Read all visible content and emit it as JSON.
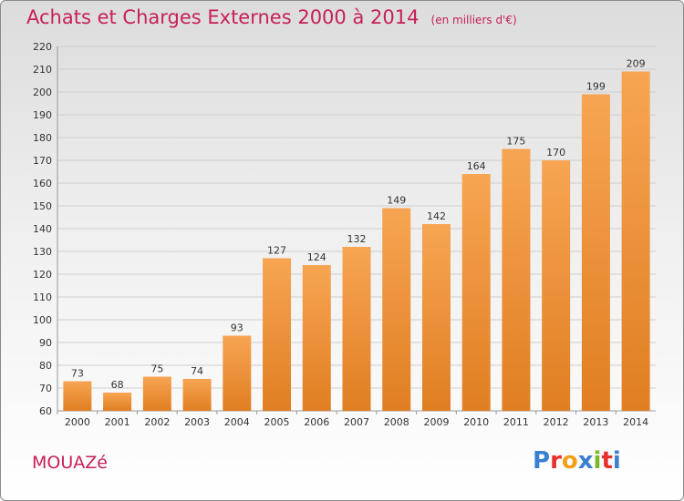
{
  "header": {
    "title": "Achats et Charges Externes 2000 à 2014",
    "unit": "(en milliers d'€)"
  },
  "footer": {
    "commune": "MOUAZé",
    "logo_letters": [
      "P",
      "r",
      "o",
      "x",
      "i",
      "t",
      "i"
    ],
    "logo_colors": [
      "#3a7fd0",
      "#e8302b",
      "#f2a018",
      "#3a7fd0",
      "#7ab828",
      "#e8302b",
      "#3a7fd0"
    ]
  },
  "colors": {
    "bar_top": "#f7a552",
    "bar_bottom": "#e07e22",
    "title": "#c7205a",
    "grid": "#cfcfcf"
  },
  "chart_data": {
    "type": "bar",
    "title": "Achats et Charges Externes 2000 à 2014",
    "xlabel": "",
    "ylabel": "",
    "categories": [
      "2000",
      "2001",
      "2002",
      "2003",
      "2004",
      "2005",
      "2006",
      "2007",
      "2008",
      "2009",
      "2010",
      "2011",
      "2012",
      "2013",
      "2014"
    ],
    "values": [
      73,
      68,
      75,
      74,
      93,
      127,
      124,
      132,
      149,
      142,
      164,
      175,
      170,
      199,
      209
    ],
    "ylim": [
      60,
      220
    ],
    "yticks": [
      60,
      70,
      80,
      90,
      100,
      110,
      120,
      130,
      140,
      150,
      160,
      170,
      180,
      190,
      200,
      210,
      220
    ],
    "grid": true,
    "legend": "none"
  }
}
